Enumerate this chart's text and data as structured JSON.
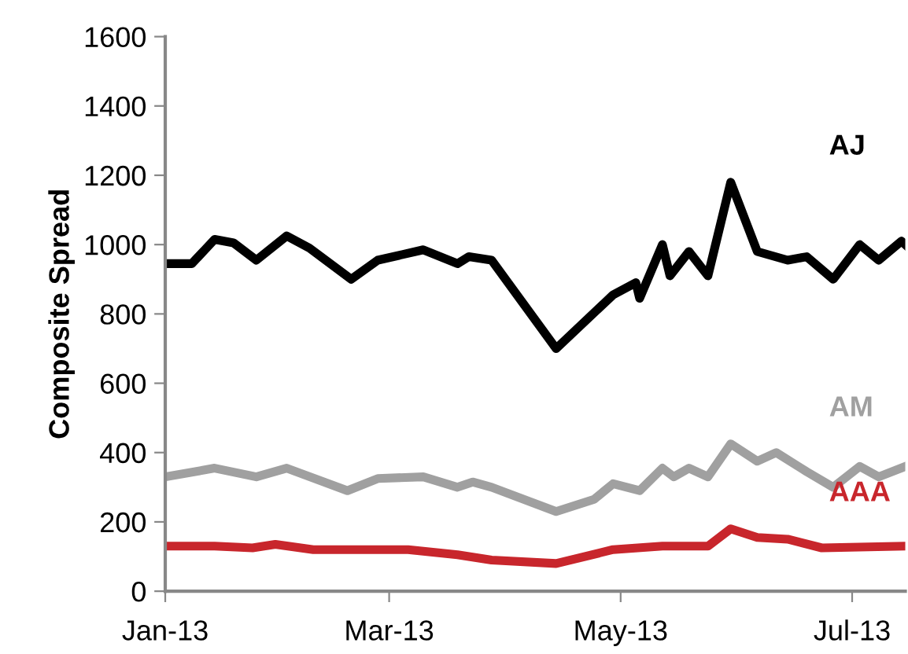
{
  "chart_data": {
    "type": "line",
    "ylabel": "Composite Spread",
    "ylim": [
      0,
      1600
    ],
    "yticks": [
      0,
      200,
      400,
      600,
      800,
      1000,
      1200,
      1400,
      1600
    ],
    "xlim": [
      "2013-01-01",
      "2013-07-15"
    ],
    "xticks": [
      {
        "value": "2013-01-01",
        "label": "Jan-13"
      },
      {
        "value": "2013-03-01",
        "label": "Mar-13"
      },
      {
        "value": "2013-05-01",
        "label": "May-13"
      },
      {
        "value": "2013-07-01",
        "label": "Jul-13"
      }
    ],
    "grid": false,
    "legend": false,
    "marker": "none",
    "line_style": "solid",
    "series": [
      {
        "name": "AJ",
        "color": "#000000",
        "x": [
          "2013-01-01",
          "2013-01-08",
          "2013-01-14",
          "2013-01-19",
          "2013-01-25",
          "2013-02-02",
          "2013-02-08",
          "2013-02-19",
          "2013-02-26",
          "2013-03-10",
          "2013-03-19",
          "2013-03-22",
          "2013-03-28",
          "2013-04-14",
          "2013-04-29",
          "2013-05-05",
          "2013-05-06",
          "2013-05-12",
          "2013-05-14",
          "2013-05-19",
          "2013-05-24",
          "2013-05-30",
          "2013-06-06",
          "2013-06-14",
          "2013-06-19",
          "2013-06-26",
          "2013-07-03",
          "2013-07-08",
          "2013-07-14",
          "2013-07-15"
        ],
        "values": [
          945,
          945,
          1015,
          1005,
          955,
          1025,
          990,
          900,
          955,
          985,
          945,
          965,
          955,
          700,
          855,
          890,
          845,
          1000,
          910,
          980,
          910,
          1180,
          980,
          955,
          965,
          900,
          1000,
          955,
          1010,
          1000
        ]
      },
      {
        "name": "AM",
        "color": "#a0a0a0",
        "x": [
          "2013-01-01",
          "2013-01-14",
          "2013-01-25",
          "2013-02-02",
          "2013-02-18",
          "2013-02-26",
          "2013-03-10",
          "2013-03-19",
          "2013-03-23",
          "2013-03-28",
          "2013-04-14",
          "2013-04-24",
          "2013-04-29",
          "2013-05-06",
          "2013-05-12",
          "2013-05-15",
          "2013-05-19",
          "2013-05-24",
          "2013-05-30",
          "2013-06-06",
          "2013-06-11",
          "2013-06-19",
          "2013-06-26",
          "2013-07-03",
          "2013-07-08",
          "2013-07-15"
        ],
        "values": [
          330,
          355,
          330,
          355,
          290,
          325,
          330,
          300,
          315,
          300,
          230,
          265,
          310,
          290,
          355,
          330,
          355,
          330,
          425,
          375,
          400,
          345,
          300,
          360,
          330,
          360
        ]
      },
      {
        "name": "AAA",
        "color": "#c8262c",
        "x": [
          "2013-01-01",
          "2013-01-14",
          "2013-01-24",
          "2013-01-30",
          "2013-02-09",
          "2013-03-06",
          "2013-03-19",
          "2013-03-28",
          "2013-04-14",
          "2013-04-29",
          "2013-05-12",
          "2013-05-24",
          "2013-05-30",
          "2013-06-06",
          "2013-06-14",
          "2013-06-23",
          "2013-07-15"
        ],
        "values": [
          130,
          130,
          125,
          135,
          120,
          120,
          105,
          90,
          80,
          120,
          130,
          130,
          180,
          155,
          150,
          125,
          130
        ]
      }
    ]
  }
}
